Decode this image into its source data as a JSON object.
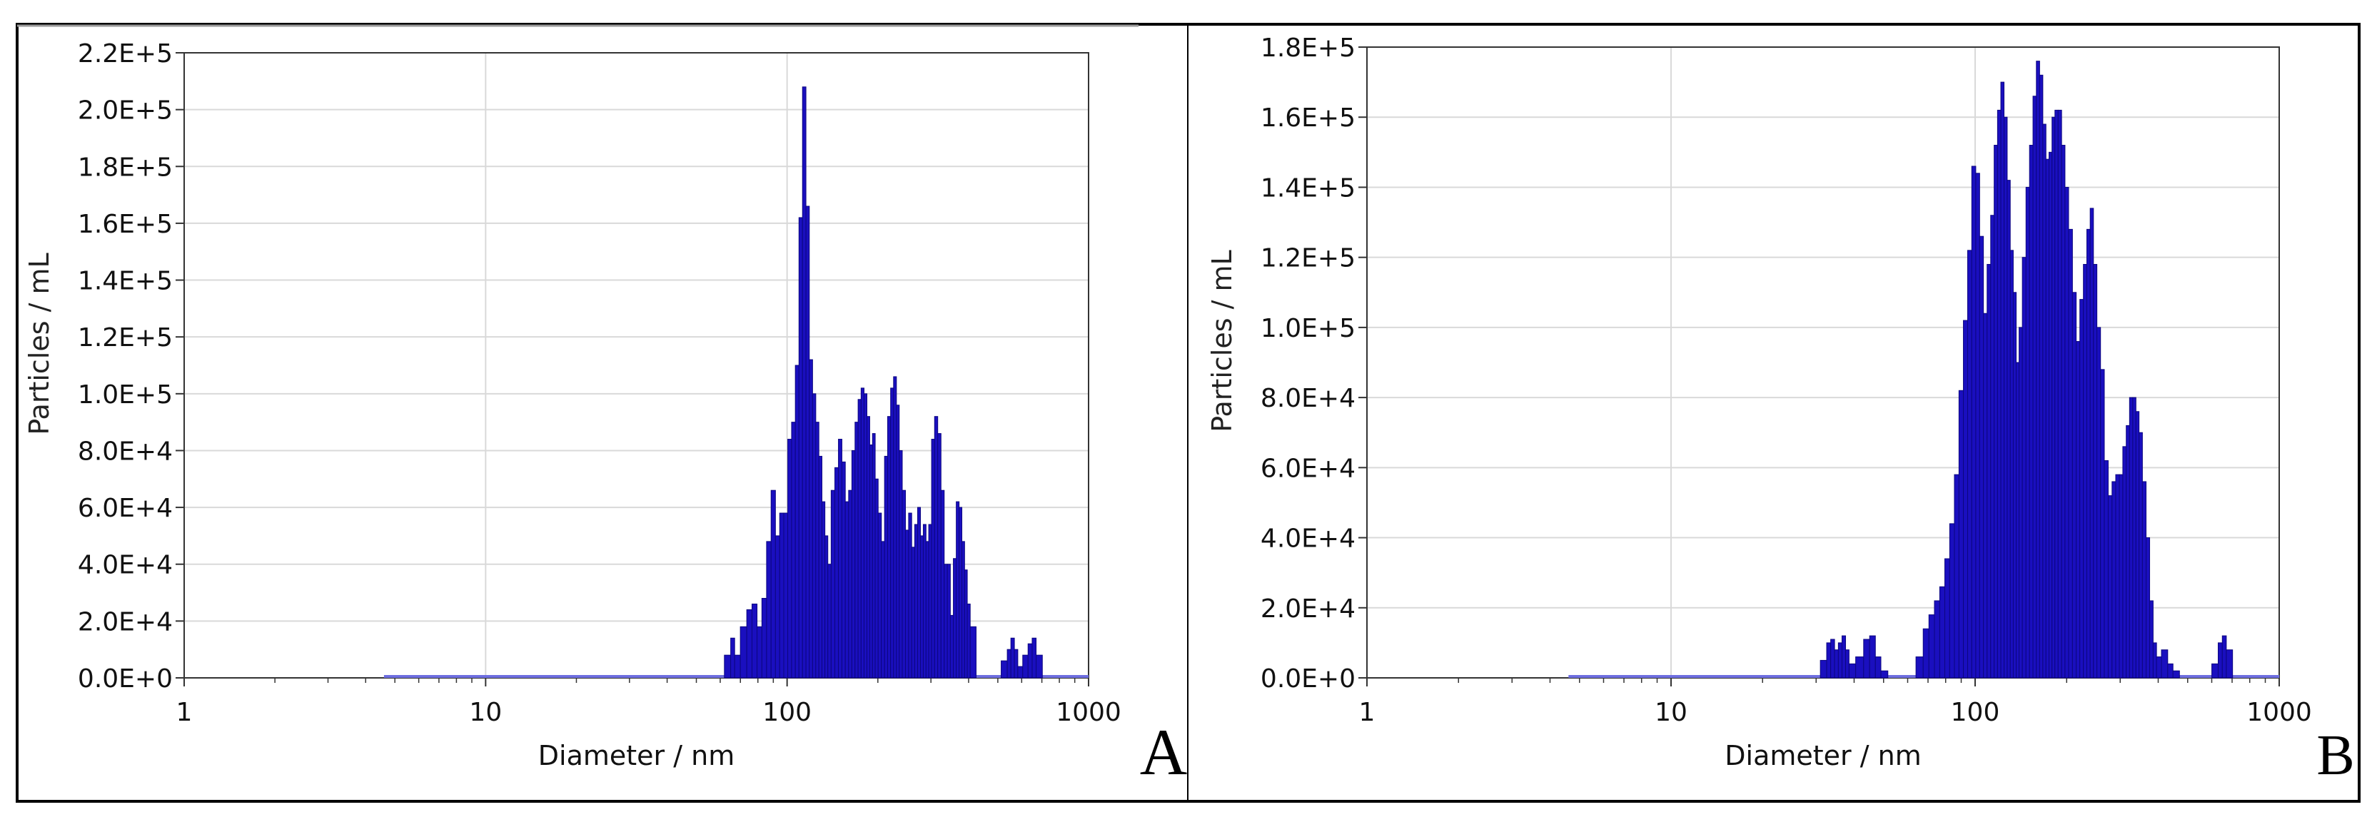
{
  "colors": {
    "bar": "#1a0fbf",
    "bar_edge": "#0c0680",
    "baseline": "#6e6ee0",
    "grid": "#d9d9d9",
    "axis": "#333333",
    "frame": "#000000"
  },
  "chart_data": [
    {
      "panel": "A",
      "type": "bar",
      "xlabel": "Diameter / nm",
      "ylabel": "Particles / mL",
      "x_scale": "log",
      "xlim": [
        1,
        1000
      ],
      "ylim": [
        0,
        220000
      ],
      "x_ticks": [
        "1",
        "10",
        "100",
        "1000"
      ],
      "y_ticks": [
        "0.0E+0",
        "2.0E+4",
        "4.0E+4",
        "6.0E+4",
        "8.0E+4",
        "1.0E+5",
        "1.2E+5",
        "1.4E+5",
        "1.6E+5",
        "1.8E+5",
        "2.0E+5",
        "2.2E+5"
      ],
      "grid": true,
      "baseline_range": [
        4.6,
        1000
      ],
      "points": [
        [
          64,
          8000
        ],
        [
          66,
          14000
        ],
        [
          68,
          8000
        ],
        [
          72,
          18000
        ],
        [
          75,
          24000
        ],
        [
          78,
          26000
        ],
        [
          81,
          18000
        ],
        [
          84,
          28000
        ],
        [
          87,
          48000
        ],
        [
          90,
          66000
        ],
        [
          93,
          50000
        ],
        [
          96,
          58000
        ],
        [
          99,
          58000
        ],
        [
          102,
          84000
        ],
        [
          105,
          90000
        ],
        [
          108,
          110000
        ],
        [
          111,
          162000
        ],
        [
          114,
          208000
        ],
        [
          117,
          166000
        ],
        [
          120,
          112000
        ],
        [
          123,
          100000
        ],
        [
          126,
          90000
        ],
        [
          129,
          78000
        ],
        [
          132,
          62000
        ],
        [
          135,
          50000
        ],
        [
          138,
          40000
        ],
        [
          142,
          66000
        ],
        [
          146,
          74000
        ],
        [
          150,
          84000
        ],
        [
          154,
          76000
        ],
        [
          158,
          62000
        ],
        [
          162,
          66000
        ],
        [
          166,
          80000
        ],
        [
          170,
          90000
        ],
        [
          174,
          98000
        ],
        [
          178,
          102000
        ],
        [
          182,
          100000
        ],
        [
          186,
          92000
        ],
        [
          190,
          82000
        ],
        [
          194,
          86000
        ],
        [
          198,
          70000
        ],
        [
          203,
          58000
        ],
        [
          208,
          48000
        ],
        [
          213,
          78000
        ],
        [
          218,
          92000
        ],
        [
          223,
          102000
        ],
        [
          228,
          106000
        ],
        [
          233,
          96000
        ],
        [
          238,
          80000
        ],
        [
          244,
          66000
        ],
        [
          250,
          52000
        ],
        [
          256,
          58000
        ],
        [
          262,
          46000
        ],
        [
          268,
          54000
        ],
        [
          274,
          60000
        ],
        [
          280,
          50000
        ],
        [
          286,
          54000
        ],
        [
          292,
          48000
        ],
        [
          298,
          54000
        ],
        [
          305,
          84000
        ],
        [
          312,
          92000
        ],
        [
          320,
          86000
        ],
        [
          328,
          66000
        ],
        [
          336,
          40000
        ],
        [
          344,
          40000
        ],
        [
          352,
          22000
        ],
        [
          360,
          42000
        ],
        [
          368,
          62000
        ],
        [
          376,
          60000
        ],
        [
          384,
          48000
        ],
        [
          392,
          38000
        ],
        [
          400,
          26000
        ],
        [
          410,
          18000
        ],
        [
          530,
          6000
        ],
        [
          545,
          10000
        ],
        [
          560,
          14000
        ],
        [
          575,
          10000
        ],
        [
          590,
          4000
        ],
        [
          620,
          8000
        ],
        [
          640,
          12000
        ],
        [
          660,
          14000
        ],
        [
          680,
          8000
        ]
      ]
    },
    {
      "panel": "B",
      "type": "bar",
      "xlabel": "Diameter / nm",
      "ylabel": "Particles / mL",
      "x_scale": "log",
      "xlim": [
        1,
        1000
      ],
      "ylim": [
        0,
        180000
      ],
      "x_ticks": [
        "1",
        "10",
        "100",
        "1000"
      ],
      "y_ticks": [
        "0.0E+0",
        "2.0E+4",
        "4.0E+4",
        "6.0E+4",
        "8.0E+4",
        "1.0E+5",
        "1.2E+5",
        "1.4E+5",
        "1.6E+5",
        "1.8E+5"
      ],
      "grid": true,
      "baseline_range": [
        4.6,
        1000
      ],
      "points": [
        [
          32,
          5000
        ],
        [
          33,
          10000
        ],
        [
          34,
          11000
        ],
        [
          35,
          8000
        ],
        [
          36,
          10000
        ],
        [
          37,
          12000
        ],
        [
          38,
          8000
        ],
        [
          39,
          4000
        ],
        [
          42,
          6000
        ],
        [
          44,
          11000
        ],
        [
          46,
          12000
        ],
        [
          48,
          6000
        ],
        [
          50,
          2000
        ],
        [
          66,
          6000
        ],
        [
          69,
          14000
        ],
        [
          72,
          18000
        ],
        [
          75,
          22000
        ],
        [
          78,
          26000
        ],
        [
          81,
          34000
        ],
        [
          84,
          44000
        ],
        [
          87,
          58000
        ],
        [
          90,
          82000
        ],
        [
          93,
          102000
        ],
        [
          96,
          122000
        ],
        [
          99,
          146000
        ],
        [
          102,
          144000
        ],
        [
          105,
          126000
        ],
        [
          108,
          104000
        ],
        [
          111,
          118000
        ],
        [
          114,
          132000
        ],
        [
          117,
          152000
        ],
        [
          120,
          162000
        ],
        [
          123,
          170000
        ],
        [
          126,
          160000
        ],
        [
          129,
          142000
        ],
        [
          132,
          122000
        ],
        [
          135,
          110000
        ],
        [
          138,
          90000
        ],
        [
          141,
          100000
        ],
        [
          145,
          120000
        ],
        [
          149,
          140000
        ],
        [
          153,
          152000
        ],
        [
          157,
          166000
        ],
        [
          161,
          176000
        ],
        [
          165,
          172000
        ],
        [
          169,
          158000
        ],
        [
          173,
          148000
        ],
        [
          177,
          150000
        ],
        [
          181,
          160000
        ],
        [
          185,
          162000
        ],
        [
          190,
          162000
        ],
        [
          195,
          152000
        ],
        [
          200,
          140000
        ],
        [
          206,
          128000
        ],
        [
          212,
          110000
        ],
        [
          218,
          96000
        ],
        [
          224,
          108000
        ],
        [
          230,
          118000
        ],
        [
          236,
          128000
        ],
        [
          242,
          134000
        ],
        [
          248,
          118000
        ],
        [
          255,
          100000
        ],
        [
          262,
          88000
        ],
        [
          270,
          62000
        ],
        [
          278,
          52000
        ],
        [
          286,
          56000
        ],
        [
          294,
          58000
        ],
        [
          302,
          58000
        ],
        [
          310,
          66000
        ],
        [
          318,
          72000
        ],
        [
          326,
          80000
        ],
        [
          334,
          80000
        ],
        [
          342,
          76000
        ],
        [
          350,
          70000
        ],
        [
          360,
          56000
        ],
        [
          370,
          40000
        ],
        [
          380,
          22000
        ],
        [
          390,
          10000
        ],
        [
          400,
          6000
        ],
        [
          420,
          8000
        ],
        [
          440,
          4000
        ],
        [
          455,
          2000
        ],
        [
          620,
          4000
        ],
        [
          640,
          10000
        ],
        [
          660,
          12000
        ],
        [
          680,
          8000
        ]
      ]
    }
  ]
}
